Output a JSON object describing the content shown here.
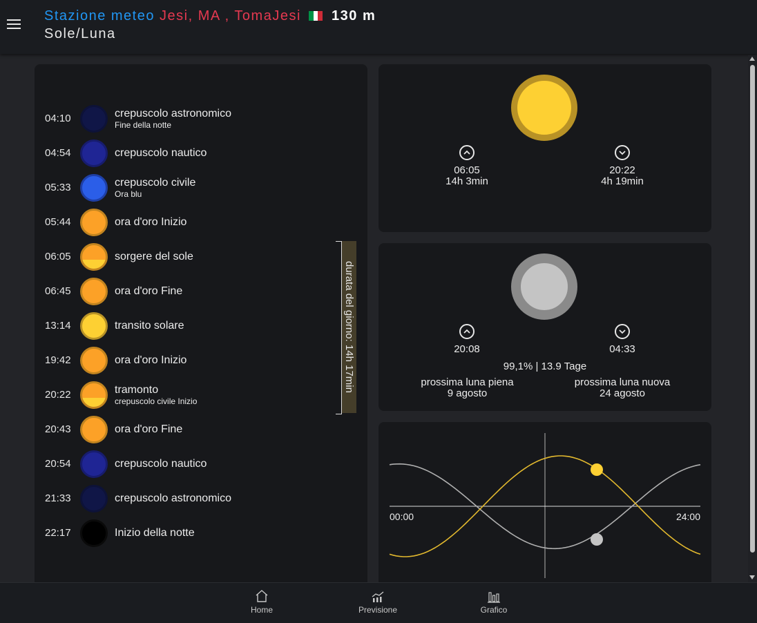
{
  "header": {
    "station_label": "Stazione meteo",
    "location": "Jesi, MA , TomaJesi",
    "altitude": "130 m",
    "flag_colors": [
      "#009246",
      "#ffffff",
      "#ce2b37"
    ],
    "subtitle": "Sole/Luna",
    "menu_icon": "hamburger-menu-icon"
  },
  "events": [
    {
      "time": "04:10",
      "label": "crepuscolo astronomico",
      "sub": "Fine della notte",
      "fill": "#101647",
      "ring": "#0d1238",
      "half": ""
    },
    {
      "time": "04:54",
      "label": "crepuscolo nautico",
      "sub": "",
      "fill": "#1f2594",
      "ring": "#171c6e",
      "half": ""
    },
    {
      "time": "05:33",
      "label": "crepuscolo civile",
      "sub": "Ora blu",
      "fill": "#2b5ee8",
      "ring": "#1e3fa6",
      "half": ""
    },
    {
      "time": "05:44",
      "label": "ora d'oro Inizio",
      "sub": "",
      "fill": "#fca127",
      "ring": "#c2841f",
      "half": ""
    },
    {
      "time": "06:05",
      "label": "sorgere del sole",
      "sub": "",
      "fill": "#fca127",
      "ring": "#c2841f",
      "half": "#fdd033"
    },
    {
      "time": "06:45",
      "label": "ora d'oro Fine",
      "sub": "",
      "fill": "#fca127",
      "ring": "#c2841f",
      "half": ""
    },
    {
      "time": "13:14",
      "label": "transito solare",
      "sub": "",
      "fill": "#fdd033",
      "ring": "#b89226",
      "half": ""
    },
    {
      "time": "19:42",
      "label": "ora d'oro Inizio",
      "sub": "",
      "fill": "#fca127",
      "ring": "#c2841f",
      "half": ""
    },
    {
      "time": "20:22",
      "label": "tramonto",
      "sub": "crepuscolo civile Inizio",
      "fill": "#fca127",
      "ring": "#c2841f",
      "half": "#fdd033"
    },
    {
      "time": "20:43",
      "label": "ora d'oro Fine",
      "sub": "",
      "fill": "#fca127",
      "ring": "#c2841f",
      "half": ""
    },
    {
      "time": "20:54",
      "label": "crepuscolo nautico",
      "sub": "",
      "fill": "#1f2594",
      "ring": "#171c6e",
      "half": ""
    },
    {
      "time": "21:33",
      "label": "crepuscolo astronomico",
      "sub": "",
      "fill": "#101647",
      "ring": "#0d1238",
      "half": ""
    },
    {
      "time": "22:17",
      "label": "Inizio della notte",
      "sub": "",
      "fill": "#000000",
      "ring": "#0a0a0a",
      "half": ""
    }
  ],
  "day_length_label": "durata del giorno: 14h 17min",
  "sun": {
    "rise_time": "06:05",
    "rise_duration": "14h 3min",
    "set_time": "20:22",
    "set_duration": "4h 19min",
    "rise_icon": "chevron-up-circle-icon",
    "set_icon": "chevron-down-circle-icon"
  },
  "moon": {
    "rise_time": "20:08",
    "set_time": "04:33",
    "illumination": "99,1% | 13.9 Tage",
    "next_full_label": "prossima luna piena",
    "next_full_date": "9 agosto",
    "next_new_label": "prossima luna nuova",
    "next_new_date": "24 agosto"
  },
  "chart": {
    "x_start_label": "00:00",
    "x_end_label": "24:00",
    "sun_color": "#fdd033",
    "moon_color": "#c4c4c4",
    "sun_curve_color": "#e3b92e",
    "moon_curve_color": "#b0b0b0"
  },
  "nav": [
    {
      "label": "Home",
      "icon": "home-icon"
    },
    {
      "label": "Previsione",
      "icon": "forecast-chart-icon"
    },
    {
      "label": "Grafico",
      "icon": "bar-chart-icon"
    }
  ]
}
